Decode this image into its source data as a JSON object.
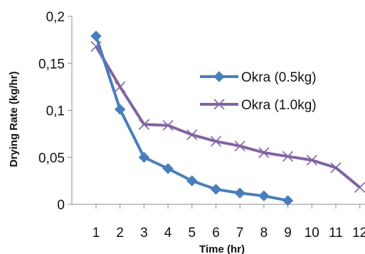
{
  "chart_data": {
    "type": "line",
    "title": "",
    "xlabel": "Time (hr)",
    "ylabel": "Drying Rate (kg/hr)",
    "x": [
      1,
      2,
      3,
      4,
      5,
      6,
      7,
      8,
      9,
      10,
      11,
      12
    ],
    "xtick_labels": [
      "1",
      "2",
      "3",
      "4",
      "5",
      "6",
      "7",
      "8",
      "9",
      "10",
      "11",
      "12"
    ],
    "ylim": [
      0,
      0.2
    ],
    "ytick_labels": [
      "0",
      "0,05",
      "0,1",
      "0,15",
      "0,2"
    ],
    "yticks": [
      0,
      0.05,
      0.1,
      0.15,
      0.2
    ],
    "grid": false,
    "legend_position": "right",
    "series": [
      {
        "name": "Okra (0.5kg)",
        "color": "#4a7ebb",
        "marker": "diamond",
        "x": [
          1,
          2,
          3,
          4,
          5,
          6,
          7,
          8,
          9
        ],
        "values": [
          0.179,
          0.101,
          0.05,
          0.038,
          0.025,
          0.016,
          0.012,
          0.009,
          0.004
        ]
      },
      {
        "name": "Okra (1.0kg)",
        "color": "#8064a2",
        "marker": "x",
        "x": [
          1,
          2,
          3,
          4,
          5,
          6,
          7,
          8,
          9,
          10,
          11,
          12
        ],
        "values": [
          0.168,
          0.125,
          0.085,
          0.084,
          0.074,
          0.067,
          0.062,
          0.055,
          0.051,
          0.047,
          0.039,
          0.018
        ]
      }
    ]
  }
}
